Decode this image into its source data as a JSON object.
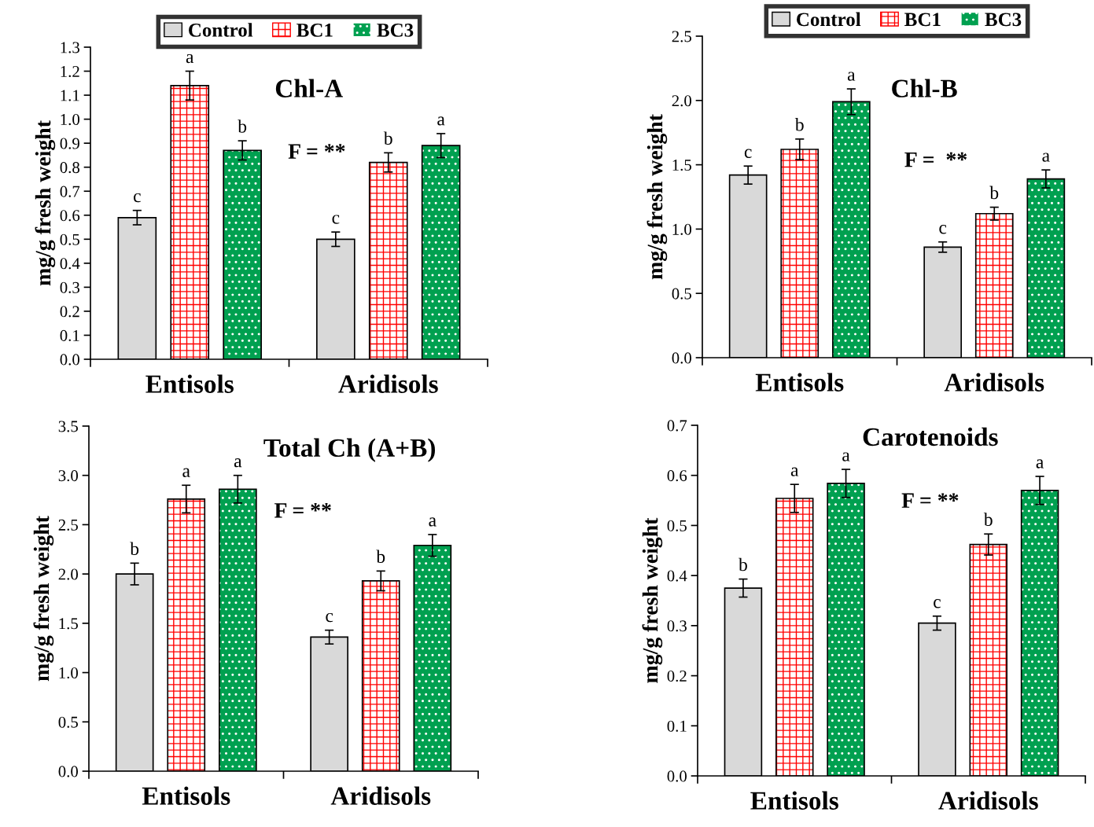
{
  "chart_data": [
    {
      "type": "bar",
      "title": "Chl-A",
      "ylabel": "mg/g fresh weight",
      "categories": [
        "Entisols",
        "Aridisols"
      ],
      "ylim": [
        0,
        1.3
      ],
      "yticks": [
        {
          "value": 0,
          "label": "0.0"
        },
        0.1,
        0.2,
        0.3,
        0.4,
        0.5,
        0.6,
        0.7,
        0.8,
        0.9,
        {
          "value": 1,
          "label": "1.0"
        },
        1.1,
        1.2,
        1.3
      ],
      "legend": "top",
      "grid": false,
      "annotations": [
        "F = **"
      ],
      "series": [
        {
          "name": "Control",
          "color": "#d9d9d9",
          "values": [
            0.59,
            0.5
          ],
          "errors": [
            0.03,
            0.03
          ],
          "value_labels": [
            "c",
            "c"
          ]
        },
        {
          "name": "BC1",
          "color": "#ff0000",
          "values": [
            1.14,
            0.82
          ],
          "errors": [
            0.06,
            0.04
          ],
          "value_labels": [
            "a",
            "b"
          ]
        },
        {
          "name": "BC3",
          "color": "#00a050",
          "values": [
            0.87,
            0.89
          ],
          "errors": [
            0.04,
            0.05
          ],
          "value_labels": [
            "b",
            "a"
          ]
        }
      ]
    },
    {
      "type": "bar",
      "title": "Chl-B",
      "ylabel": "mg/g fresh weight",
      "categories": [
        "Entisols",
        "Aridisols"
      ],
      "ylim": [
        0,
        2.5
      ],
      "yticks": [
        {
          "value": 0,
          "label": "0.0"
        },
        0.5,
        {
          "value": 1,
          "label": "1.0"
        },
        1.5,
        {
          "value": 2,
          "label": "2.0"
        },
        2.5
      ],
      "legend": "top",
      "grid": false,
      "annotations": [
        "F =  **"
      ],
      "series": [
        {
          "name": "Control",
          "color": "#d9d9d9",
          "values": [
            1.42,
            0.86
          ],
          "errors": [
            0.07,
            0.04
          ],
          "value_labels": [
            "c",
            "c"
          ]
        },
        {
          "name": "BC1",
          "color": "#ff0000",
          "values": [
            1.62,
            1.12
          ],
          "errors": [
            0.08,
            0.05
          ],
          "value_labels": [
            "b",
            "b"
          ]
        },
        {
          "name": "BC3",
          "color": "#00a050",
          "values": [
            1.99,
            1.39
          ],
          "errors": [
            0.1,
            0.07
          ],
          "value_labels": [
            "a",
            "a"
          ]
        }
      ]
    },
    {
      "type": "bar",
      "title": "Total Ch (A+B)",
      "ylabel": "mg/g fresh weight",
      "categories": [
        "Entisols",
        "Aridisols"
      ],
      "ylim": [
        0,
        3.5
      ],
      "yticks": [
        {
          "value": 0,
          "label": "0.0"
        },
        0.5,
        {
          "value": 1,
          "label": "1.0"
        },
        1.5,
        {
          "value": 2,
          "label": "2.0"
        },
        2.5,
        {
          "value": 3,
          "label": "3.0"
        },
        3.5
      ],
      "legend": false,
      "grid": false,
      "annotations": [
        "F = **"
      ],
      "series": [
        {
          "color": "#d9d9d9",
          "values": [
            2.0,
            1.36
          ],
          "errors": [
            0.11,
            0.07
          ],
          "value_labels": [
            "b",
            "c"
          ]
        },
        {
          "color": "#ff0000",
          "values": [
            2.76,
            1.93
          ],
          "errors": [
            0.14,
            0.1
          ],
          "value_labels": [
            "a",
            "b"
          ]
        },
        {
          "color": "#00a050",
          "values": [
            2.86,
            2.29
          ],
          "errors": [
            0.14,
            0.11
          ],
          "value_labels": [
            "a",
            "a"
          ]
        }
      ]
    },
    {
      "type": "bar",
      "title": "Carotenoids",
      "ylabel": "mg/g fresh weight",
      "categories": [
        "Entisols",
        "Aridisols"
      ],
      "ylim": [
        0,
        0.7
      ],
      "yticks": [
        {
          "value": 0,
          "label": "0.0"
        },
        0.1,
        0.2,
        0.3,
        0.4,
        0.5,
        0.6,
        0.7
      ],
      "legend": false,
      "grid": false,
      "annotations": [
        "F = **"
      ],
      "series": [
        {
          "color": "#d9d9d9",
          "values": [
            0.375,
            0.305
          ],
          "errors": [
            0.018,
            0.014
          ],
          "value_labels": [
            "b",
            "c"
          ]
        },
        {
          "color": "#ff0000",
          "values": [
            0.554,
            0.462
          ],
          "errors": [
            0.028,
            0.021
          ],
          "value_labels": [
            "a",
            "b"
          ]
        },
        {
          "color": "#00a050",
          "values": [
            0.584,
            0.57
          ],
          "errors": [
            0.028,
            0.028
          ],
          "value_labels": [
            "a",
            "a"
          ]
        }
      ]
    }
  ]
}
